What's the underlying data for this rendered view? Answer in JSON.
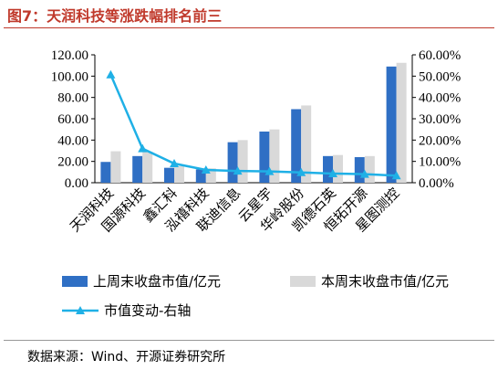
{
  "figure": {
    "title": "图7：天润科技等涨跌幅排名前三",
    "source": "数据来源：Wind、开源证券研究所"
  },
  "colors": {
    "title": "#c0392b",
    "series_prev": "#2f6fc4",
    "series_curr": "#d9d9d9",
    "series_change": "#1fb0e6"
  },
  "chart_data": {
    "type": "bar",
    "categories": [
      "天润科技",
      "国源科技",
      "鑫汇科",
      "泓禧科技",
      "联迪信息",
      "云星宇",
      "华岭股份",
      "凯德石英",
      "恒拓开源",
      "星图测控"
    ],
    "series": [
      {
        "name": "上周末收盘市值/亿元",
        "type": "bar",
        "axis": "left",
        "values": [
          19.5,
          25.0,
          14.0,
          12.5,
          38.0,
          48.0,
          69.0,
          25.0,
          24.0,
          109.0
        ]
      },
      {
        "name": "本周末收盘市值/亿元",
        "type": "bar",
        "axis": "left",
        "values": [
          29.5,
          29.0,
          15.5,
          13.5,
          40.0,
          50.0,
          72.5,
          26.0,
          25.0,
          112.5
        ]
      },
      {
        "name": "市值变动-右轴",
        "type": "line",
        "axis": "right",
        "marker": "triangle",
        "values": [
          50.7,
          16.0,
          9.0,
          6.0,
          5.5,
          5.3,
          4.8,
          4.3,
          4.0,
          3.3
        ]
      }
    ],
    "ylim_left": [
      0,
      120
    ],
    "yticks_left": [
      "0.00",
      "20.00",
      "40.00",
      "60.00",
      "80.00",
      "100.00",
      "120.00"
    ],
    "ylim_right": [
      0,
      60
    ],
    "yticks_right": [
      "0.00%",
      "10.00%",
      "20.00%",
      "30.00%",
      "40.00%",
      "50.00%",
      "60.00%"
    ],
    "grid": false,
    "legend_position": "bottom"
  }
}
